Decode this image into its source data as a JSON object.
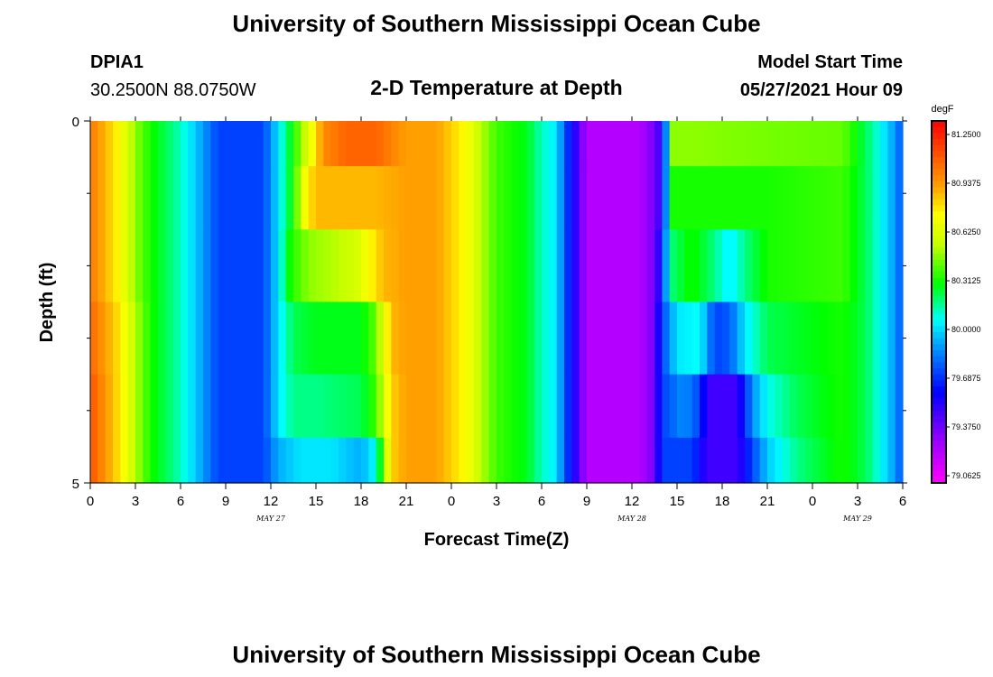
{
  "header": {
    "title": "University of Southern Mississippi Ocean Cube",
    "station": "DPIA1",
    "coords": "30.2500N  88.0750W",
    "subtitle": "2-D Temperature at Depth",
    "start_label": "Model Start Time",
    "start_value": "05/27/2021 Hour 09",
    "footer_title": "University of Southern Mississippi Ocean Cube"
  },
  "chart_data": {
    "type": "heatmap",
    "title": "2-D Temperature at Depth",
    "xlabel": "Forecast Time(Z)",
    "ylabel": "Depth (ft)",
    "xlim": [
      0,
      54
    ],
    "ylim": [
      0,
      5
    ],
    "x_ticks": [
      0,
      3,
      6,
      9,
      12,
      15,
      18,
      21,
      24,
      27,
      30,
      33,
      36,
      39,
      42,
      45,
      48,
      51,
      54
    ],
    "x_tick_labels": [
      "0",
      "3",
      "6",
      "9",
      "12",
      "15",
      "18",
      "21",
      "0",
      "3",
      "6",
      "9",
      "12",
      "15",
      "18",
      "21",
      "0",
      "3",
      "6"
    ],
    "y_tick_labels": [
      {
        "depth": 0,
        "label": "0"
      },
      {
        "depth": 5,
        "label": "5"
      }
    ],
    "y_minor_ticks": [
      1,
      2,
      3,
      4
    ],
    "date_labels": [
      {
        "hour": 12,
        "label": "MAY 27"
      },
      {
        "hour": 36,
        "label": "MAY 28"
      },
      {
        "hour": 51,
        "label": "MAY 29"
      }
    ],
    "colorbar": {
      "unit": "degF",
      "min": 79.0,
      "max": 81.3125,
      "labels": [
        "81.2500",
        "80.9375",
        "80.6250",
        "80.3125",
        "80.0000",
        "79.6875",
        "79.3750",
        "79.0625"
      ]
    },
    "cell_hours": 0.5,
    "layers": [
      {
        "depth": 0.25,
        "key": [
          [
            0,
            81.0
          ],
          [
            2,
            80.7
          ],
          [
            3,
            80.45
          ],
          [
            4,
            80.3
          ],
          [
            6,
            80.1
          ],
          [
            7,
            79.95
          ],
          [
            8.5,
            79.7
          ],
          [
            11.5,
            79.7
          ],
          [
            12.5,
            80.0
          ],
          [
            13.5,
            80.3
          ],
          [
            14.5,
            80.6
          ],
          [
            15.5,
            80.95
          ],
          [
            17,
            81.05
          ],
          [
            19,
            81.05
          ],
          [
            21,
            80.9
          ],
          [
            23,
            80.9
          ],
          [
            25,
            80.7
          ],
          [
            26,
            80.5
          ],
          [
            27,
            80.35
          ],
          [
            29,
            80.25
          ],
          [
            30,
            80.1
          ],
          [
            31,
            80.0
          ],
          [
            31.5,
            79.75
          ],
          [
            32.5,
            79.4
          ],
          [
            33,
            79.2
          ],
          [
            36.5,
            79.2
          ],
          [
            37.5,
            79.35
          ],
          [
            38,
            79.5
          ],
          [
            38.3,
            79.9
          ],
          [
            38.6,
            80.45
          ],
          [
            40,
            80.45
          ],
          [
            45,
            80.42
          ],
          [
            50,
            80.4
          ],
          [
            51.5,
            80.2
          ],
          [
            52.5,
            80.05
          ],
          [
            53.3,
            79.9
          ],
          [
            54,
            79.72
          ]
        ]
      },
      {
        "depth": 1.0,
        "key": [
          [
            0,
            81.0
          ],
          [
            2,
            80.7
          ],
          [
            3,
            80.45
          ],
          [
            4,
            80.3
          ],
          [
            6,
            80.1
          ],
          [
            7,
            79.95
          ],
          [
            8.5,
            79.7
          ],
          [
            11.5,
            79.7
          ],
          [
            12.5,
            80.0
          ],
          [
            13.5,
            80.3
          ],
          [
            14.3,
            80.7
          ],
          [
            15,
            80.85
          ],
          [
            19,
            80.85
          ],
          [
            21,
            80.9
          ],
          [
            23,
            80.9
          ],
          [
            25,
            80.7
          ],
          [
            26,
            80.5
          ],
          [
            27,
            80.35
          ],
          [
            29,
            80.25
          ],
          [
            30,
            80.1
          ],
          [
            31,
            80.0
          ],
          [
            31.5,
            79.75
          ],
          [
            32.5,
            79.4
          ],
          [
            33,
            79.2
          ],
          [
            36.5,
            79.2
          ],
          [
            37.5,
            79.35
          ],
          [
            38,
            79.5
          ],
          [
            38.3,
            79.9
          ],
          [
            38.6,
            80.3
          ],
          [
            45,
            80.3
          ],
          [
            50,
            80.35
          ],
          [
            51.5,
            80.2
          ],
          [
            52.5,
            80.05
          ],
          [
            53.3,
            79.9
          ],
          [
            54,
            79.72
          ]
        ]
      },
      {
        "depth": 2.0,
        "key": [
          [
            0,
            81.0
          ],
          [
            2,
            80.7
          ],
          [
            3,
            80.45
          ],
          [
            4,
            80.3
          ],
          [
            6,
            80.1
          ],
          [
            7,
            79.95
          ],
          [
            8.5,
            79.7
          ],
          [
            11.5,
            79.7
          ],
          [
            12.5,
            80.0
          ],
          [
            13.3,
            80.3
          ],
          [
            14.5,
            80.45
          ],
          [
            17.5,
            80.55
          ],
          [
            18.5,
            80.7
          ],
          [
            19.5,
            80.85
          ],
          [
            21,
            80.9
          ],
          [
            23,
            80.9
          ],
          [
            25,
            80.7
          ],
          [
            26,
            80.5
          ],
          [
            27,
            80.35
          ],
          [
            29,
            80.25
          ],
          [
            30,
            80.1
          ],
          [
            31,
            80.0
          ],
          [
            31.5,
            79.75
          ],
          [
            32.5,
            79.4
          ],
          [
            33,
            79.2
          ],
          [
            36.5,
            79.2
          ],
          [
            37.5,
            79.35
          ],
          [
            38,
            79.6
          ],
          [
            38.5,
            80.15
          ],
          [
            40,
            80.3
          ],
          [
            41.5,
            80.15
          ],
          [
            42.5,
            80.0
          ],
          [
            43.5,
            80.15
          ],
          [
            45,
            80.3
          ],
          [
            50,
            80.35
          ],
          [
            51.5,
            80.2
          ],
          [
            52.5,
            80.05
          ],
          [
            53.3,
            79.9
          ],
          [
            54,
            79.72
          ]
        ]
      },
      {
        "depth": 3.0,
        "key": [
          [
            0,
            81.05
          ],
          [
            2,
            80.75
          ],
          [
            3,
            80.5
          ],
          [
            4,
            80.3
          ],
          [
            6,
            80.1
          ],
          [
            7,
            79.95
          ],
          [
            8.5,
            79.7
          ],
          [
            11.5,
            79.7
          ],
          [
            12.5,
            80.0
          ],
          [
            13.5,
            80.2
          ],
          [
            15,
            80.25
          ],
          [
            18,
            80.25
          ],
          [
            19,
            80.4
          ],
          [
            20,
            80.85
          ],
          [
            21,
            80.9
          ],
          [
            23,
            80.9
          ],
          [
            25,
            80.7
          ],
          [
            26,
            80.5
          ],
          [
            27,
            80.35
          ],
          [
            29,
            80.25
          ],
          [
            30,
            80.1
          ],
          [
            31,
            80.0
          ],
          [
            31.5,
            79.75
          ],
          [
            32.5,
            79.4
          ],
          [
            33,
            79.2
          ],
          [
            36.5,
            79.2
          ],
          [
            37.5,
            79.35
          ],
          [
            38,
            79.7
          ],
          [
            39,
            80.0
          ],
          [
            40.5,
            80.05
          ],
          [
            41.5,
            79.7
          ],
          [
            42.5,
            79.75
          ],
          [
            43.5,
            80.0
          ],
          [
            45,
            80.2
          ],
          [
            50,
            80.3
          ],
          [
            51.5,
            80.2
          ],
          [
            52.5,
            80.05
          ],
          [
            53.3,
            79.9
          ],
          [
            54,
            79.72
          ]
        ]
      },
      {
        "depth": 4.0,
        "key": [
          [
            0,
            81.1
          ],
          [
            2,
            80.75
          ],
          [
            3,
            80.5
          ],
          [
            4,
            80.3
          ],
          [
            6,
            80.1
          ],
          [
            7,
            79.95
          ],
          [
            8.5,
            79.7
          ],
          [
            11.5,
            79.7
          ],
          [
            12.5,
            80.0
          ],
          [
            13.5,
            80.15
          ],
          [
            15,
            80.15
          ],
          [
            18,
            80.2
          ],
          [
            19,
            80.35
          ],
          [
            20,
            80.8
          ],
          [
            21,
            80.9
          ],
          [
            23,
            80.9
          ],
          [
            25,
            80.7
          ],
          [
            26,
            80.5
          ],
          [
            27,
            80.35
          ],
          [
            29,
            80.25
          ],
          [
            30,
            80.1
          ],
          [
            31,
            80.0
          ],
          [
            31.5,
            79.75
          ],
          [
            32.5,
            79.4
          ],
          [
            33,
            79.2
          ],
          [
            36.5,
            79.2
          ],
          [
            37.5,
            79.35
          ],
          [
            38,
            79.7
          ],
          [
            39.5,
            79.85
          ],
          [
            40.5,
            79.7
          ],
          [
            41,
            79.45
          ],
          [
            43,
            79.45
          ],
          [
            44,
            79.85
          ],
          [
            45,
            80.05
          ],
          [
            47,
            80.2
          ],
          [
            50,
            80.3
          ],
          [
            51.5,
            80.2
          ],
          [
            52.5,
            80.05
          ],
          [
            53.3,
            79.9
          ],
          [
            54,
            79.72
          ]
        ]
      },
      {
        "depth": 4.75,
        "key": [
          [
            0,
            81.1
          ],
          [
            2,
            80.75
          ],
          [
            3,
            80.5
          ],
          [
            4,
            80.3
          ],
          [
            6,
            80.1
          ],
          [
            7,
            79.95
          ],
          [
            8.5,
            79.7
          ],
          [
            11.5,
            79.7
          ],
          [
            12.5,
            79.9
          ],
          [
            14,
            80.0
          ],
          [
            16,
            80.0
          ],
          [
            18,
            79.9
          ],
          [
            19,
            80.05
          ],
          [
            20,
            80.8
          ],
          [
            21,
            80.9
          ],
          [
            23,
            80.9
          ],
          [
            25,
            80.7
          ],
          [
            26,
            80.5
          ],
          [
            27,
            80.35
          ],
          [
            29,
            80.25
          ],
          [
            30,
            80.1
          ],
          [
            31,
            80.0
          ],
          [
            31.5,
            79.75
          ],
          [
            32.5,
            79.4
          ],
          [
            33,
            79.2
          ],
          [
            36.5,
            79.2
          ],
          [
            37.5,
            79.35
          ],
          [
            38,
            79.7
          ],
          [
            40,
            79.7
          ],
          [
            41,
            79.45
          ],
          [
            43,
            79.45
          ],
          [
            44,
            79.7
          ],
          [
            45,
            79.95
          ],
          [
            47,
            80.15
          ],
          [
            50,
            80.3
          ],
          [
            51.5,
            80.2
          ],
          [
            52.5,
            80.05
          ],
          [
            53.3,
            79.9
          ],
          [
            54,
            79.72
          ]
        ]
      }
    ]
  }
}
